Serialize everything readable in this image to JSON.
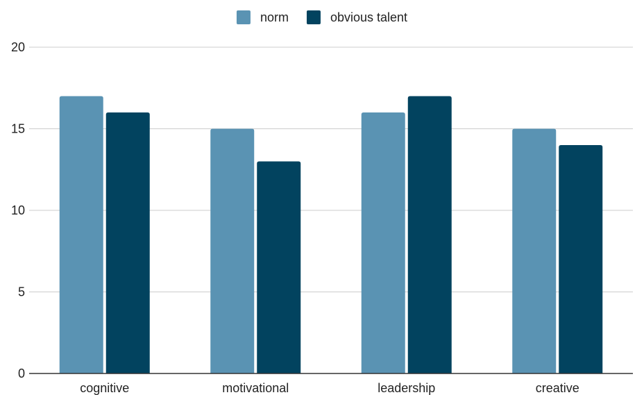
{
  "chart_data": {
    "type": "bar",
    "title": "",
    "xlabel": "",
    "ylabel": "",
    "categories": [
      "cognitive",
      "motivational",
      "leadership",
      "creative"
    ],
    "series": [
      {
        "name": "norm",
        "color": "#5a93b3",
        "values": [
          17,
          15,
          16,
          15
        ]
      },
      {
        "name": "obvious talent",
        "color": "#02435f",
        "values": [
          16,
          13,
          17,
          14
        ]
      }
    ],
    "ylim": [
      0,
      20
    ],
    "yticks": [
      0,
      5,
      10,
      15,
      20
    ],
    "grid": true,
    "legend_position": "top-center"
  }
}
